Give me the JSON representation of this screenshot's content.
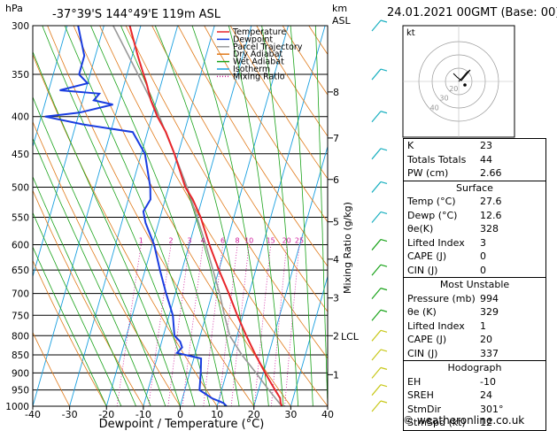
{
  "header": {
    "pressure_unit": "hPa",
    "location": "-37°39'S  144°49'E  119m  ASL",
    "height_unit": "km",
    "height_unit2": "ASL",
    "datetime": "24.01.2021  00GMT  (Base: 00)"
  },
  "legend": [
    {
      "label": "Temperature",
      "color": "#e8262b",
      "style": "solid"
    },
    {
      "label": "Dewpoint",
      "color": "#1a3de0",
      "style": "solid"
    },
    {
      "label": "Parcel Trajectory",
      "color": "#999999",
      "style": "solid"
    },
    {
      "label": "Dry Adiabat",
      "color": "#e07a1a",
      "style": "solid"
    },
    {
      "label": "Wet Adiabat",
      "color": "#1aa31a",
      "style": "solid"
    },
    {
      "label": "Isotherm",
      "color": "#1aa0e0",
      "style": "solid"
    },
    {
      "label": "Mixing Ratio",
      "color": "#d0189a",
      "style": "dotted"
    }
  ],
  "axes": {
    "xlabel": "Dewpoint / Temperature (°C)",
    "ylabel_right": "Mixing Ratio (g/kg)",
    "x_ticks": [
      "-40",
      "-30",
      "-20",
      "-10",
      "0",
      "10",
      "20",
      "30",
      "40"
    ],
    "p_ticks": [
      "300",
      "350",
      "400",
      "450",
      "500",
      "550",
      "600",
      "650",
      "700",
      "750",
      "800",
      "850",
      "900",
      "950",
      "1000"
    ],
    "km_ticks": [
      "8",
      "7",
      "6",
      "5",
      "4",
      "3",
      "2",
      "1"
    ],
    "lcl_label": "LCL",
    "mixing_ratio_labels": [
      "1",
      "2",
      "3",
      "4",
      "6",
      "8",
      "10",
      "15",
      "20",
      "25"
    ]
  },
  "chart_data": {
    "type": "line",
    "title": "-37°39'S  144°49'E  119m  ASL",
    "xlabel": "Dewpoint / Temperature (°C)",
    "ylabel": "hPa",
    "xlim": [
      -40,
      40
    ],
    "ylim": [
      1000,
      300
    ],
    "y_scale": "log",
    "skew": "skew-T",
    "km_levels": [
      {
        "km": 1,
        "p": 905
      },
      {
        "km": 2,
        "p": 800
      },
      {
        "km": 3,
        "p": 710
      },
      {
        "km": 4,
        "p": 628
      },
      {
        "km": 5,
        "p": 558
      },
      {
        "km": 6,
        "p": 488
      },
      {
        "km": 7,
        "p": 428
      },
      {
        "km": 8,
        "p": 370
      }
    ],
    "lcl_p": 800,
    "series": [
      {
        "name": "Temperature",
        "color": "#e8262b",
        "points": [
          [
            1000,
            27.6
          ],
          [
            990,
            27.0
          ],
          [
            975,
            26.5
          ],
          [
            950,
            24.5
          ],
          [
            925,
            22.5
          ],
          [
            900,
            20.5
          ],
          [
            850,
            16.5
          ],
          [
            800,
            12.5
          ],
          [
            750,
            8.5
          ],
          [
            700,
            4.5
          ],
          [
            650,
            0.0
          ],
          [
            600,
            -4.5
          ],
          [
            550,
            -9.0
          ],
          [
            520,
            -12.5
          ],
          [
            500,
            -15.5
          ],
          [
            450,
            -21.0
          ],
          [
            420,
            -25.0
          ],
          [
            400,
            -28.5
          ],
          [
            380,
            -31.5
          ],
          [
            360,
            -34.0
          ],
          [
            350,
            -35.5
          ],
          [
            330,
            -38.5
          ],
          [
            300,
            -43.0
          ]
        ]
      },
      {
        "name": "Dewpoint",
        "color": "#1a3de0",
        "points": [
          [
            1000,
            12.6
          ],
          [
            990,
            11.5
          ],
          [
            975,
            8.0
          ],
          [
            950,
            4.0
          ],
          [
            925,
            3.5
          ],
          [
            900,
            3.0
          ],
          [
            860,
            2.0
          ],
          [
            845,
            -5.0
          ],
          [
            830,
            -4.0
          ],
          [
            815,
            -5.0
          ],
          [
            800,
            -7.0
          ],
          [
            750,
            -9.0
          ],
          [
            700,
            -12.5
          ],
          [
            650,
            -16.0
          ],
          [
            600,
            -19.5
          ],
          [
            560,
            -23.5
          ],
          [
            540,
            -25.0
          ],
          [
            520,
            -24.0
          ],
          [
            500,
            -25.0
          ],
          [
            450,
            -29.0
          ],
          [
            420,
            -34.0
          ],
          [
            410,
            -48.0
          ],
          [
            400,
            -59.0
          ],
          [
            395,
            -50.0
          ],
          [
            385,
            -41.5
          ],
          [
            380,
            -47.0
          ],
          [
            372,
            -46.0
          ],
          [
            368,
            -57.0
          ],
          [
            360,
            -50.0
          ],
          [
            350,
            -53.0
          ],
          [
            330,
            -53.0
          ],
          [
            300,
            -57.0
          ]
        ]
      },
      {
        "name": "Parcel Trajectory",
        "color": "#999999",
        "points": [
          [
            1000,
            27.6
          ],
          [
            950,
            22.8
          ],
          [
            900,
            18.0
          ],
          [
            850,
            12.8
          ],
          [
            800,
            8.0
          ],
          [
            750,
            5.0
          ],
          [
            700,
            2.0
          ],
          [
            650,
            -1.6
          ],
          [
            600,
            -5.5
          ],
          [
            550,
            -10.0
          ],
          [
            500,
            -15.0
          ],
          [
            450,
            -21.0
          ],
          [
            400,
            -28.0
          ],
          [
            350,
            -37.0
          ],
          [
            300,
            -47.5
          ]
        ]
      }
    ]
  },
  "hodograph": {
    "corner_label": "kt",
    "ring_labels": [
      "40",
      "30",
      "20"
    ]
  },
  "indices": {
    "k_label": "K",
    "k_value": "23",
    "tt_label": "Totals Totals",
    "tt_value": "44",
    "pw_label": "PW (cm)",
    "pw_value": "2.66"
  },
  "surface": {
    "title": "Surface",
    "rows": [
      {
        "label": "Temp (°C)",
        "value": "27.6"
      },
      {
        "label": "Dewp (°C)",
        "value": "12.6"
      },
      {
        "label": "θe(K)",
        "value": "328"
      },
      {
        "label": "Lifted Index",
        "value": "3"
      },
      {
        "label": "CAPE (J)",
        "value": "0"
      },
      {
        "label": "CIN (J)",
        "value": "0"
      }
    ]
  },
  "most_unstable": {
    "title": "Most Unstable",
    "rows": [
      {
        "label": "Pressure (mb)",
        "value": "994"
      },
      {
        "label": "θe (K)",
        "value": "329"
      },
      {
        "label": "Lifted Index",
        "value": "1"
      },
      {
        "label": "CAPE (J)",
        "value": "20"
      },
      {
        "label": "CIN (J)",
        "value": "337"
      }
    ]
  },
  "hodograph_table": {
    "title": "Hodograph",
    "rows": [
      {
        "label": "EH",
        "value": "-10"
      },
      {
        "label": "SREH",
        "value": "24"
      },
      {
        "label": "StmDir",
        "value": "301°"
      },
      {
        "label": "StmSpd (kt)",
        "value": "12"
      }
    ]
  },
  "credit": "© weatheronline.co.uk"
}
